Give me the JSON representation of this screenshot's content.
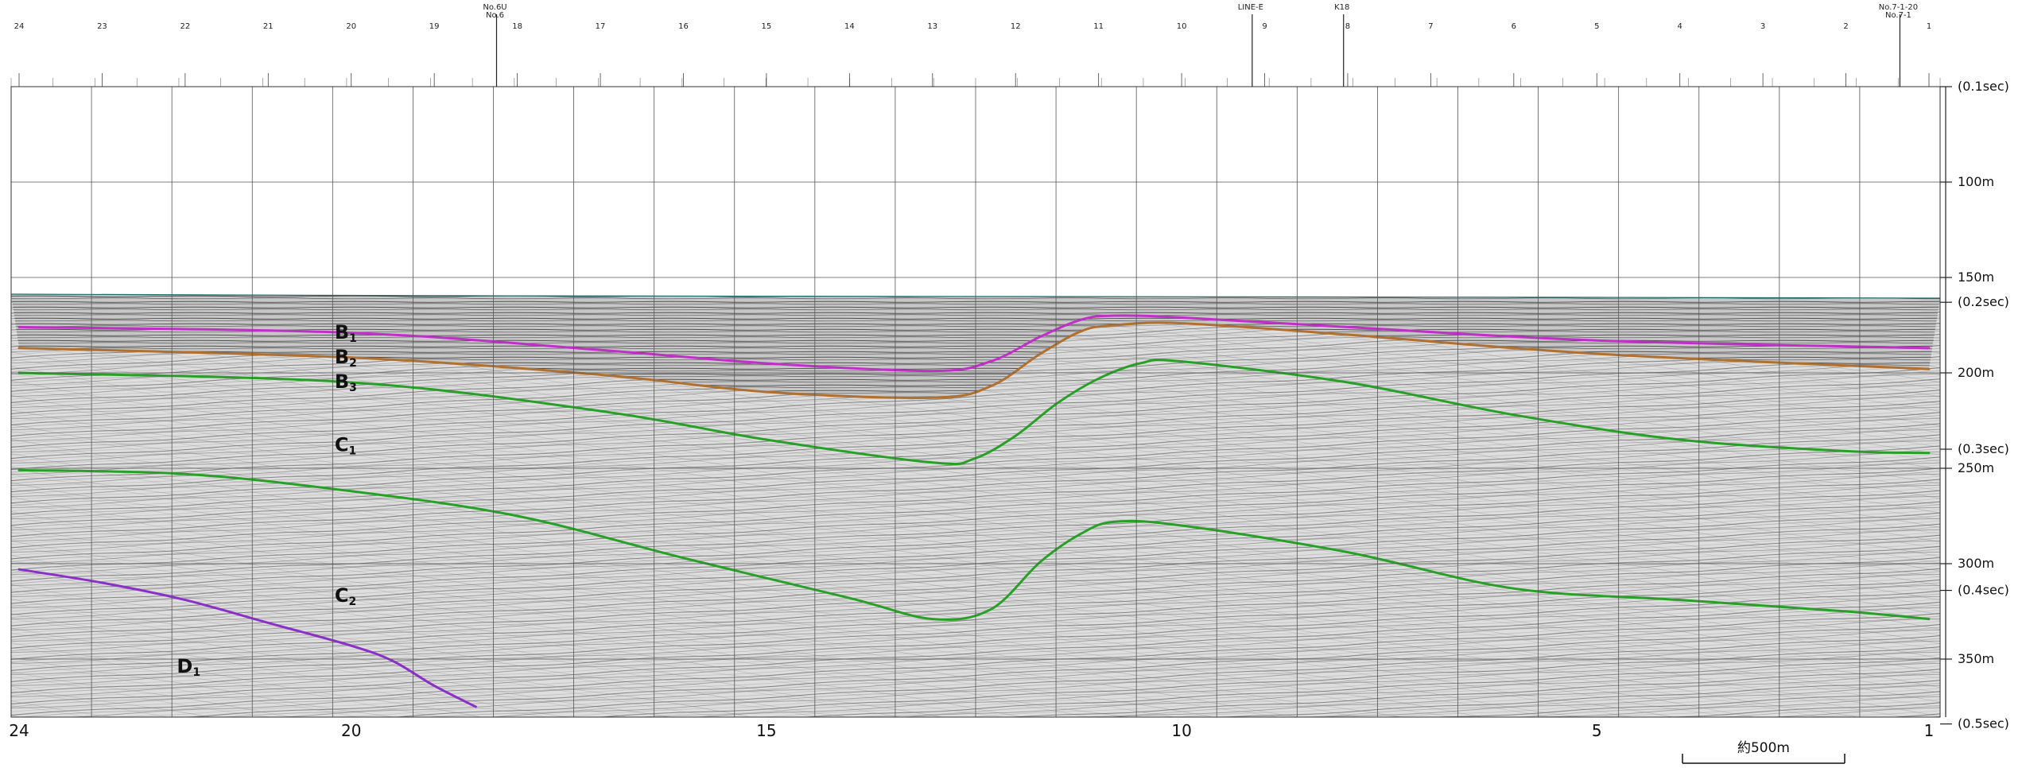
{
  "header": {
    "top_labels": [
      {
        "text": "24",
        "at": 24
      },
      {
        "text": "23",
        "at": 23
      },
      {
        "text": "22",
        "at": 22
      },
      {
        "text": "21",
        "at": 21
      },
      {
        "text": "20",
        "at": 20
      },
      {
        "text": "19",
        "at": 19
      },
      {
        "text": "18",
        "at": 18
      },
      {
        "text": "17",
        "at": 17
      },
      {
        "text": "16",
        "at": 16
      },
      {
        "text": "15",
        "at": 15
      },
      {
        "text": "14",
        "at": 14
      },
      {
        "text": "13",
        "at": 13
      },
      {
        "text": "12",
        "at": 12
      },
      {
        "text": "11",
        "at": 11
      },
      {
        "text": "10",
        "at": 10
      },
      {
        "text": "9",
        "at": 9
      },
      {
        "text": "8",
        "at": 8
      },
      {
        "text": "7",
        "at": 7
      },
      {
        "text": "6",
        "at": 6
      },
      {
        "text": "5",
        "at": 5
      },
      {
        "text": "4",
        "at": 4
      },
      {
        "text": "3",
        "at": 3
      },
      {
        "text": "2",
        "at": 2
      },
      {
        "text": "1",
        "at": 1
      }
    ],
    "markers": [
      {
        "lines": [
          "No.6U",
          "No.6"
        ],
        "at": 18.25
      },
      {
        "lines": [
          "LINE-E"
        ],
        "at": 9.15
      },
      {
        "lines": [
          "K18"
        ],
        "at": 8.05
      },
      {
        "lines": [
          "No.7-1-20",
          "No.7-1"
        ],
        "at": 1.35
      }
    ]
  },
  "bottom_axis": [
    {
      "text": "24",
      "at": 24
    },
    {
      "text": "20",
      "at": 20
    },
    {
      "text": "15",
      "at": 15
    },
    {
      "text": "10",
      "at": 10
    },
    {
      "text": "5",
      "at": 5
    },
    {
      "text": "1",
      "at": 1
    }
  ],
  "depth_axis": [
    {
      "text": "(0.1sec)",
      "depth": 50
    },
    {
      "text": "100m",
      "depth": 100
    },
    {
      "text": "150m",
      "depth": 150
    },
    {
      "text": "(0.2sec)",
      "depth": 163
    },
    {
      "text": "200m",
      "depth": 200
    },
    {
      "text": "(0.3sec)",
      "depth": 240
    },
    {
      "text": "250m",
      "depth": 250
    },
    {
      "text": "300m",
      "depth": 300
    },
    {
      "text": "(0.4sec)",
      "depth": 314
    },
    {
      "text": "350m",
      "depth": 350
    },
    {
      "text": "(0.5sec)",
      "depth": 384
    }
  ],
  "units": [
    {
      "main": "B",
      "sub": "1",
      "at": 20.2,
      "depth": 182
    },
    {
      "main": "B",
      "sub": "2",
      "at": 20.2,
      "depth": 195
    },
    {
      "main": "B",
      "sub": "3",
      "at": 20.2,
      "depth": 208
    },
    {
      "main": "C",
      "sub": "1",
      "at": 20.2,
      "depth": 241
    },
    {
      "main": "C",
      "sub": "2",
      "at": 20.2,
      "depth": 320
    },
    {
      "main": "D",
      "sub": "1",
      "at": 22.1,
      "depth": 357
    }
  ],
  "horizons": [
    {
      "name": "B1",
      "color": "#c02fc8",
      "points": [
        [
          24,
          176
        ],
        [
          20,
          179
        ],
        [
          17,
          188
        ],
        [
          15,
          195
        ],
        [
          13,
          199
        ],
        [
          12.3,
          194
        ],
        [
          11.7,
          181
        ],
        [
          11.2,
          172
        ],
        [
          10.8,
          170
        ],
        [
          10,
          171
        ],
        [
          8,
          176
        ],
        [
          5,
          183
        ],
        [
          1,
          187
        ]
      ]
    },
    {
      "name": "B2",
      "color": "#b07030",
      "points": [
        [
          24,
          187
        ],
        [
          20,
          192
        ],
        [
          17,
          201
        ],
        [
          15,
          210
        ],
        [
          13,
          213
        ],
        [
          12.3,
          207
        ],
        [
          11.7,
          190
        ],
        [
          11.2,
          178
        ],
        [
          10.8,
          175
        ],
        [
          10,
          174
        ],
        [
          8,
          180
        ],
        [
          5,
          190
        ],
        [
          1,
          198
        ]
      ]
    },
    {
      "name": "C1",
      "color": "#28a028",
      "points": [
        [
          24,
          200
        ],
        [
          20,
          205
        ],
        [
          17,
          220
        ],
        [
          15,
          235
        ],
        [
          13,
          247
        ],
        [
          12.5,
          245
        ],
        [
          12,
          233
        ],
        [
          11.5,
          216
        ],
        [
          11,
          203
        ],
        [
          10.5,
          195
        ],
        [
          10,
          194
        ],
        [
          8,
          205
        ],
        [
          6,
          222
        ],
        [
          4,
          235
        ],
        [
          2,
          241
        ],
        [
          1,
          242
        ]
      ]
    },
    {
      "name": "C2",
      "color": "#28a028",
      "points": [
        [
          24,
          251
        ],
        [
          22,
          253
        ],
        [
          20,
          262
        ],
        [
          18,
          275
        ],
        [
          16,
          297
        ],
        [
          14,
          318
        ],
        [
          13,
          329
        ],
        [
          12.3,
          324
        ],
        [
          11.7,
          299
        ],
        [
          11.2,
          284
        ],
        [
          10.8,
          278
        ],
        [
          10,
          280
        ],
        [
          8,
          294
        ],
        [
          6,
          313
        ],
        [
          4,
          319
        ],
        [
          2,
          325
        ],
        [
          1,
          329
        ]
      ]
    },
    {
      "name": "D1",
      "color": "#8a2fc8",
      "points": [
        [
          24,
          303
        ],
        [
          23,
          310
        ],
        [
          22,
          319
        ],
        [
          21,
          331
        ],
        [
          20,
          343
        ],
        [
          19.5,
          351
        ],
        [
          19,
          364
        ],
        [
          18.5,
          375
        ]
      ]
    }
  ],
  "scale_bar": {
    "label": "約500m"
  }
}
